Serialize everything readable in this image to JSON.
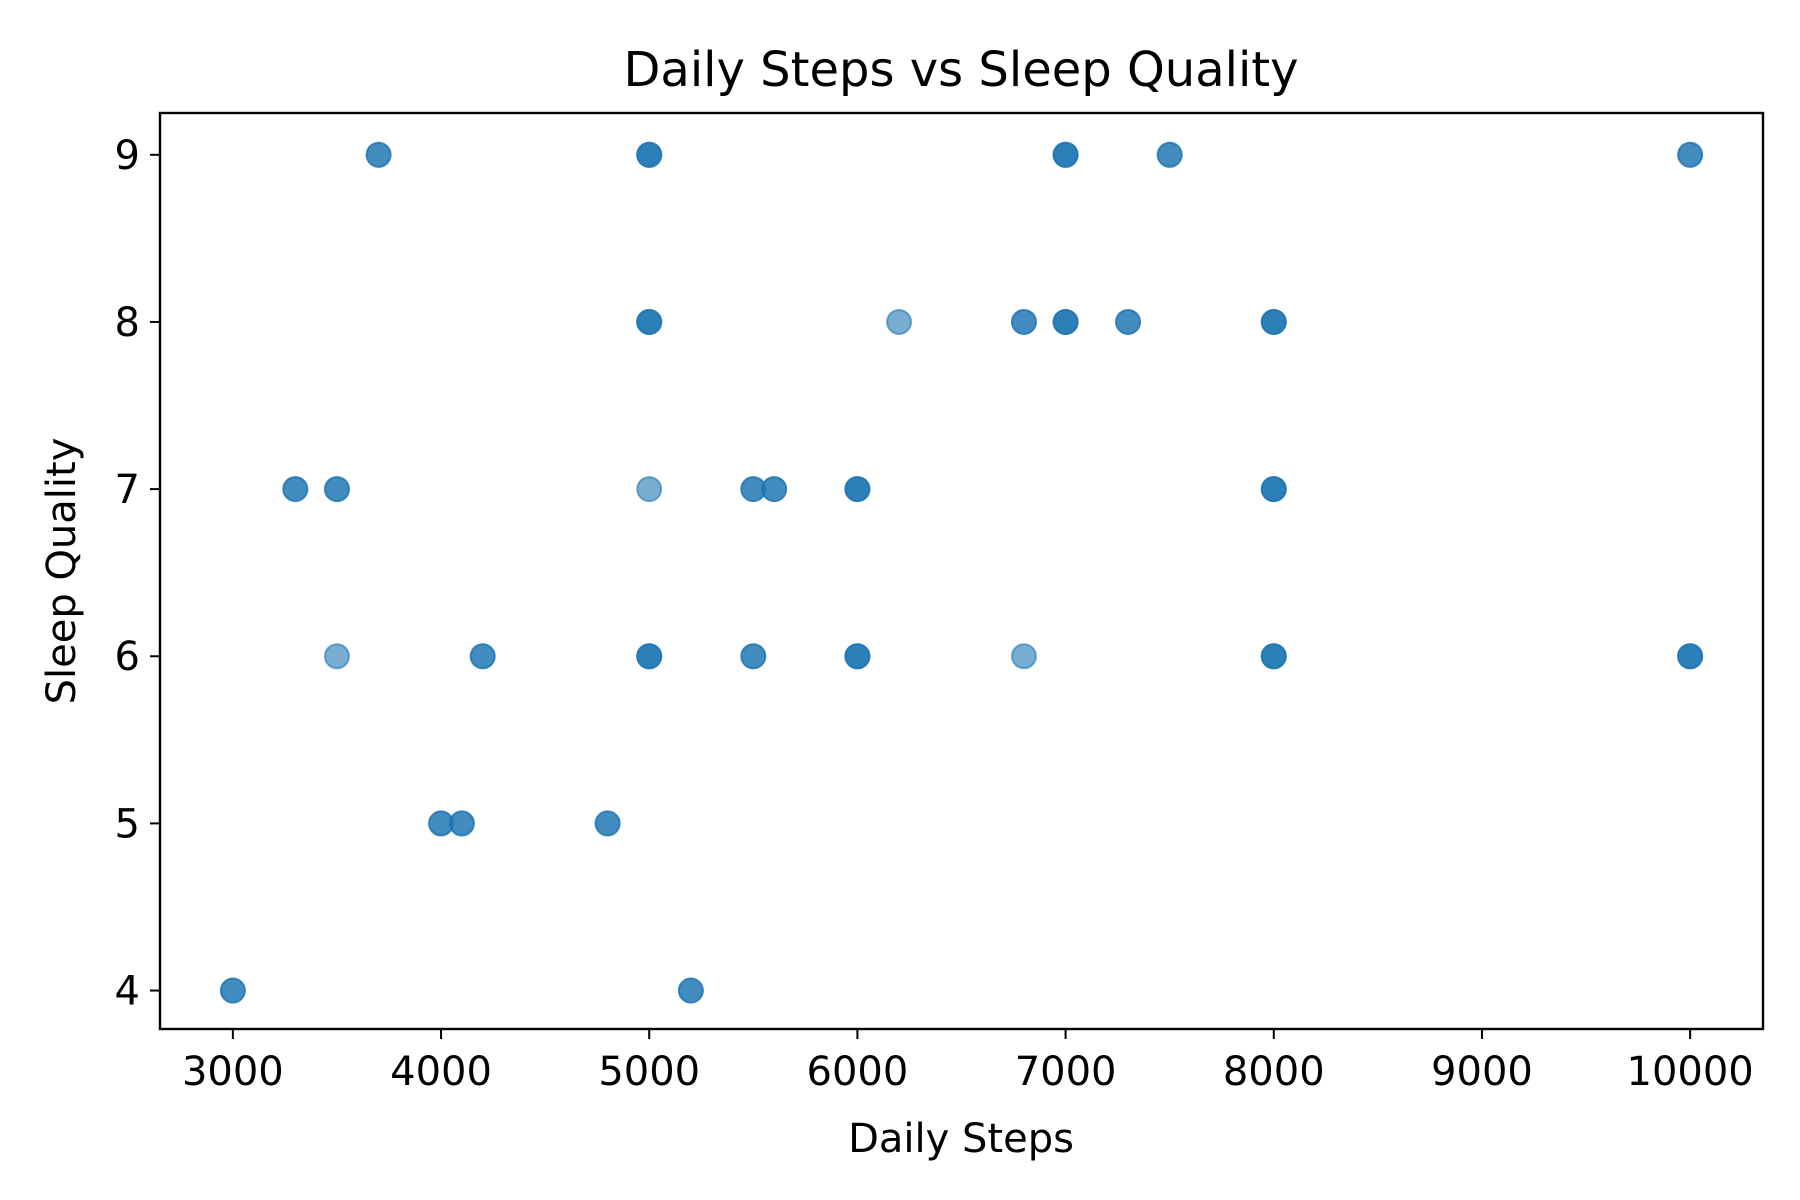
{
  "chart_data": {
    "type": "scatter",
    "title": "Daily Steps vs Sleep Quality",
    "xlabel": "Daily Steps",
    "ylabel": "Sleep Quality",
    "xlim": [
      2650,
      10350
    ],
    "ylim": [
      3.77,
      9.25
    ],
    "xticks": [
      3000,
      4000,
      5000,
      6000,
      7000,
      8000,
      9000,
      10000
    ],
    "yticks": [
      4,
      5,
      6,
      7,
      8,
      9
    ],
    "grid": false,
    "legend": "none",
    "marker_color": "#1f77b4",
    "marker_alpha": 0.6,
    "points": [
      {
        "x": 3000,
        "y": 4
      },
      {
        "x": 3000,
        "y": 4
      },
      {
        "x": 3300,
        "y": 7
      },
      {
        "x": 3300,
        "y": 7
      },
      {
        "x": 3500,
        "y": 7
      },
      {
        "x": 3500,
        "y": 7
      },
      {
        "x": 3500,
        "y": 6
      },
      {
        "x": 3700,
        "y": 9
      },
      {
        "x": 3700,
        "y": 9
      },
      {
        "x": 4000,
        "y": 5
      },
      {
        "x": 4000,
        "y": 5
      },
      {
        "x": 4100,
        "y": 5
      },
      {
        "x": 4100,
        "y": 5
      },
      {
        "x": 4200,
        "y": 6
      },
      {
        "x": 4200,
        "y": 6
      },
      {
        "x": 4800,
        "y": 5
      },
      {
        "x": 4800,
        "y": 5
      },
      {
        "x": 5000,
        "y": 9
      },
      {
        "x": 5000,
        "y": 9
      },
      {
        "x": 5000,
        "y": 9
      },
      {
        "x": 5000,
        "y": 8
      },
      {
        "x": 5000,
        "y": 8
      },
      {
        "x": 5000,
        "y": 8
      },
      {
        "x": 5000,
        "y": 7
      },
      {
        "x": 5000,
        "y": 6
      },
      {
        "x": 5000,
        "y": 6
      },
      {
        "x": 5000,
        "y": 6
      },
      {
        "x": 5200,
        "y": 4
      },
      {
        "x": 5200,
        "y": 4
      },
      {
        "x": 5500,
        "y": 7
      },
      {
        "x": 5500,
        "y": 7
      },
      {
        "x": 5500,
        "y": 6
      },
      {
        "x": 5500,
        "y": 6
      },
      {
        "x": 5600,
        "y": 7
      },
      {
        "x": 5600,
        "y": 7
      },
      {
        "x": 6000,
        "y": 7
      },
      {
        "x": 6000,
        "y": 7
      },
      {
        "x": 6000,
        "y": 7
      },
      {
        "x": 6000,
        "y": 6
      },
      {
        "x": 6000,
        "y": 6
      },
      {
        "x": 6000,
        "y": 6
      },
      {
        "x": 6200,
        "y": 8
      },
      {
        "x": 6800,
        "y": 8
      },
      {
        "x": 6800,
        "y": 8
      },
      {
        "x": 6800,
        "y": 6
      },
      {
        "x": 7000,
        "y": 9
      },
      {
        "x": 7000,
        "y": 9
      },
      {
        "x": 7000,
        "y": 9
      },
      {
        "x": 7000,
        "y": 8
      },
      {
        "x": 7000,
        "y": 8
      },
      {
        "x": 7000,
        "y": 8
      },
      {
        "x": 7300,
        "y": 8
      },
      {
        "x": 7300,
        "y": 8
      },
      {
        "x": 7500,
        "y": 9
      },
      {
        "x": 7500,
        "y": 9
      },
      {
        "x": 8000,
        "y": 8
      },
      {
        "x": 8000,
        "y": 8
      },
      {
        "x": 8000,
        "y": 8
      },
      {
        "x": 8000,
        "y": 7
      },
      {
        "x": 8000,
        "y": 7
      },
      {
        "x": 8000,
        "y": 7
      },
      {
        "x": 8000,
        "y": 6
      },
      {
        "x": 8000,
        "y": 6
      },
      {
        "x": 8000,
        "y": 6
      },
      {
        "x": 10000,
        "y": 9
      },
      {
        "x": 10000,
        "y": 9
      },
      {
        "x": 10000,
        "y": 6
      },
      {
        "x": 10000,
        "y": 6
      },
      {
        "x": 10000,
        "y": 6
      }
    ]
  }
}
